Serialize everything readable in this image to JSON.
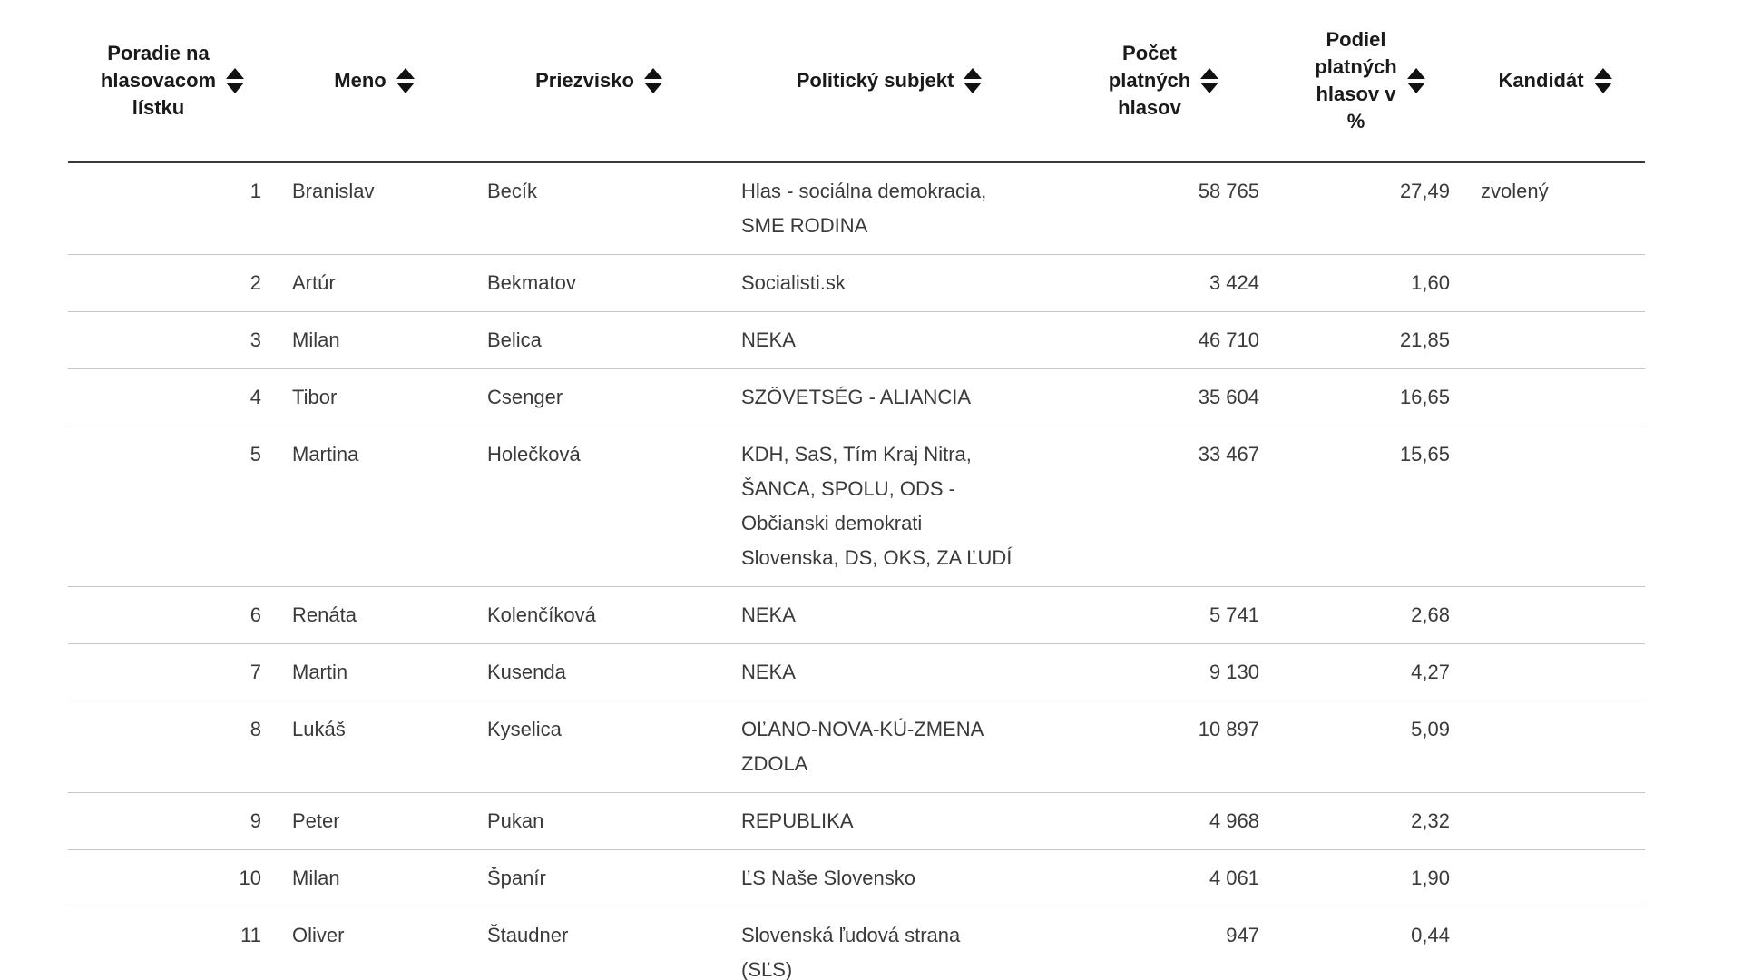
{
  "table": {
    "fields": [
      "poradie",
      "meno",
      "priezvisko",
      "subjekt",
      "hlasy",
      "podiel",
      "kandidat"
    ],
    "columns": [
      {
        "label": "Poradie na\nhlasovacom\nlístku",
        "sortable": true,
        "icon": "sort-arrows"
      },
      {
        "label": "Meno",
        "sortable": true,
        "icon": "sort-arrows"
      },
      {
        "label": "Priezvisko",
        "sortable": true,
        "icon": "sort-arrows"
      },
      {
        "label": "Politický subjekt",
        "sortable": true,
        "icon": "sort-arrows"
      },
      {
        "label": "Počet\nplatných\nhlasov",
        "sortable": true,
        "icon": "sort-arrows"
      },
      {
        "label": "Podiel\nplatných\nhlasov v\n%",
        "sortable": true,
        "icon": "sort-arrows"
      },
      {
        "label": "Kandidát",
        "sortable": true,
        "icon": "sort-arrows"
      }
    ],
    "rows": [
      {
        "poradie": "1",
        "meno": "Branislav",
        "priezvisko": "Becík",
        "subjekt": "Hlas - sociálna demokracia,\nSME RODINA",
        "hlasy": "58 765",
        "podiel": "27,49",
        "kandidat": "zvolený"
      },
      {
        "poradie": "2",
        "meno": "Artúr",
        "priezvisko": "Bekmatov",
        "subjekt": "Socialisti.sk",
        "hlasy": "3 424",
        "podiel": "1,60",
        "kandidat": ""
      },
      {
        "poradie": "3",
        "meno": "Milan",
        "priezvisko": "Belica",
        "subjekt": "NEKA",
        "hlasy": "46 710",
        "podiel": "21,85",
        "kandidat": ""
      },
      {
        "poradie": "4",
        "meno": "Tibor",
        "priezvisko": "Csenger",
        "subjekt": "SZÖVETSÉG - ALIANCIA",
        "hlasy": "35 604",
        "podiel": "16,65",
        "kandidat": ""
      },
      {
        "poradie": "5",
        "meno": "Martina",
        "priezvisko": "Holečková",
        "subjekt": "KDH, SaS, Tím Kraj Nitra,\nŠANCA, SPOLU, ODS -\nObčianski demokrati\nSlovenska, DS, OKS, ZA ĽUDÍ",
        "hlasy": "33 467",
        "podiel": "15,65",
        "kandidat": ""
      },
      {
        "poradie": "6",
        "meno": "Renáta",
        "priezvisko": "Kolenčíková",
        "subjekt": "NEKA",
        "hlasy": "5 741",
        "podiel": "2,68",
        "kandidat": ""
      },
      {
        "poradie": "7",
        "meno": "Martin",
        "priezvisko": "Kusenda",
        "subjekt": "NEKA",
        "hlasy": "9 130",
        "podiel": "4,27",
        "kandidat": ""
      },
      {
        "poradie": "8",
        "meno": "Lukáš",
        "priezvisko": "Kyselica",
        "subjekt": "OĽANO-NOVA-KÚ-ZMENA\nZDOLA",
        "hlasy": "10 897",
        "podiel": "5,09",
        "kandidat": ""
      },
      {
        "poradie": "9",
        "meno": "Peter",
        "priezvisko": "Pukan",
        "subjekt": "REPUBLIKA",
        "hlasy": "4 968",
        "podiel": "2,32",
        "kandidat": ""
      },
      {
        "poradie": "10",
        "meno": "Milan",
        "priezvisko": "Španír",
        "subjekt": "ĽS Naše Slovensko",
        "hlasy": "4 061",
        "podiel": "1,90",
        "kandidat": ""
      },
      {
        "poradie": "11",
        "meno": "Oliver",
        "priezvisko": "Štaudner",
        "subjekt": "Slovenská ľudová strana\n(SĽS)",
        "hlasy": "947",
        "podiel": "0,44",
        "kandidat": ""
      }
    ]
  },
  "colors": {
    "background": "#ffffff",
    "header_text": "#1a1a1a",
    "body_text": "#3a3a3a",
    "header_border": "#3b3b3b",
    "row_separator": "#c5c5c5",
    "sort_icon": "#111111"
  }
}
